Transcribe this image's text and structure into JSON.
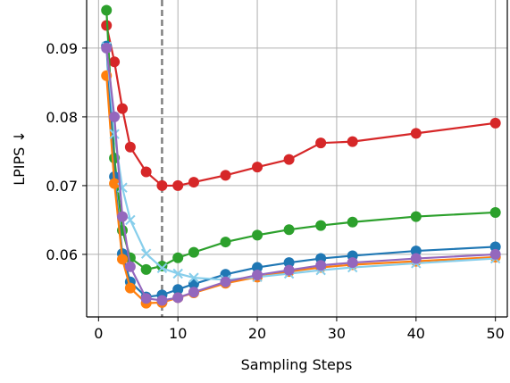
{
  "chart_data": {
    "type": "line",
    "xlabel": "Sampling Steps",
    "ylabel": "LPIPS ↓",
    "xlim": [
      -1.5,
      51.5
    ],
    "ylim": [
      0.0509,
      0.097
    ],
    "xticks": [
      0,
      10,
      20,
      30,
      40,
      50
    ],
    "yticks": [
      0.06,
      0.07,
      0.08,
      0.09
    ],
    "ytick_labels": [
      "0.06",
      "0.07",
      "0.08",
      "0.09"
    ],
    "grid": true,
    "vline": {
      "x": 8,
      "style": "dashed",
      "color": "#808080"
    },
    "x": [
      1,
      2,
      3,
      4,
      6,
      8,
      10,
      12,
      16,
      20,
      24,
      28,
      32,
      40,
      50
    ],
    "series": [
      {
        "color": "#d62728",
        "marker": "o",
        "values": [
          0.0933,
          0.088,
          0.0812,
          0.0756,
          0.072,
          0.07,
          0.07,
          0.0705,
          0.0715,
          0.0727,
          0.0738,
          0.0762,
          0.0764,
          0.0776,
          0.0791
        ]
      },
      {
        "color": "#2ca02c",
        "marker": "o",
        "values": [
          0.0955,
          0.074,
          0.0635,
          0.0595,
          0.0578,
          0.0583,
          0.0595,
          0.0603,
          0.0618,
          0.0628,
          0.0636,
          0.0642,
          0.0647,
          0.0655,
          0.0661
        ]
      },
      {
        "color": "#1f77b4",
        "marker": "o",
        "values": [
          0.0903,
          0.0713,
          0.0601,
          0.056,
          0.0538,
          0.0541,
          0.0549,
          0.0557,
          0.0571,
          0.0581,
          0.0588,
          0.0594,
          0.0598,
          0.0605,
          0.0611
        ]
      },
      {
        "color": "#ff7f0e",
        "marker": "o",
        "values": [
          0.086,
          0.0703,
          0.0593,
          0.0551,
          0.0529,
          0.053,
          0.0537,
          0.0544,
          0.0558,
          0.0567,
          0.0575,
          0.0581,
          0.0585,
          0.059,
          0.0596
        ]
      },
      {
        "color": "#87ceeb",
        "marker": "x",
        "values": [
          0.0902,
          0.0775,
          0.0697,
          0.065,
          0.0601,
          0.058,
          0.0572,
          0.0566,
          0.0563,
          0.0567,
          0.0572,
          0.0577,
          0.0581,
          0.0587,
          0.0594
        ]
      },
      {
        "color": "#9467bd",
        "marker": "o",
        "values": [
          0.09,
          0.08,
          0.0655,
          0.0582,
          0.0536,
          0.0533,
          0.0537,
          0.0545,
          0.056,
          0.057,
          0.0577,
          0.0584,
          0.0588,
          0.0594,
          0.06
        ]
      }
    ]
  }
}
